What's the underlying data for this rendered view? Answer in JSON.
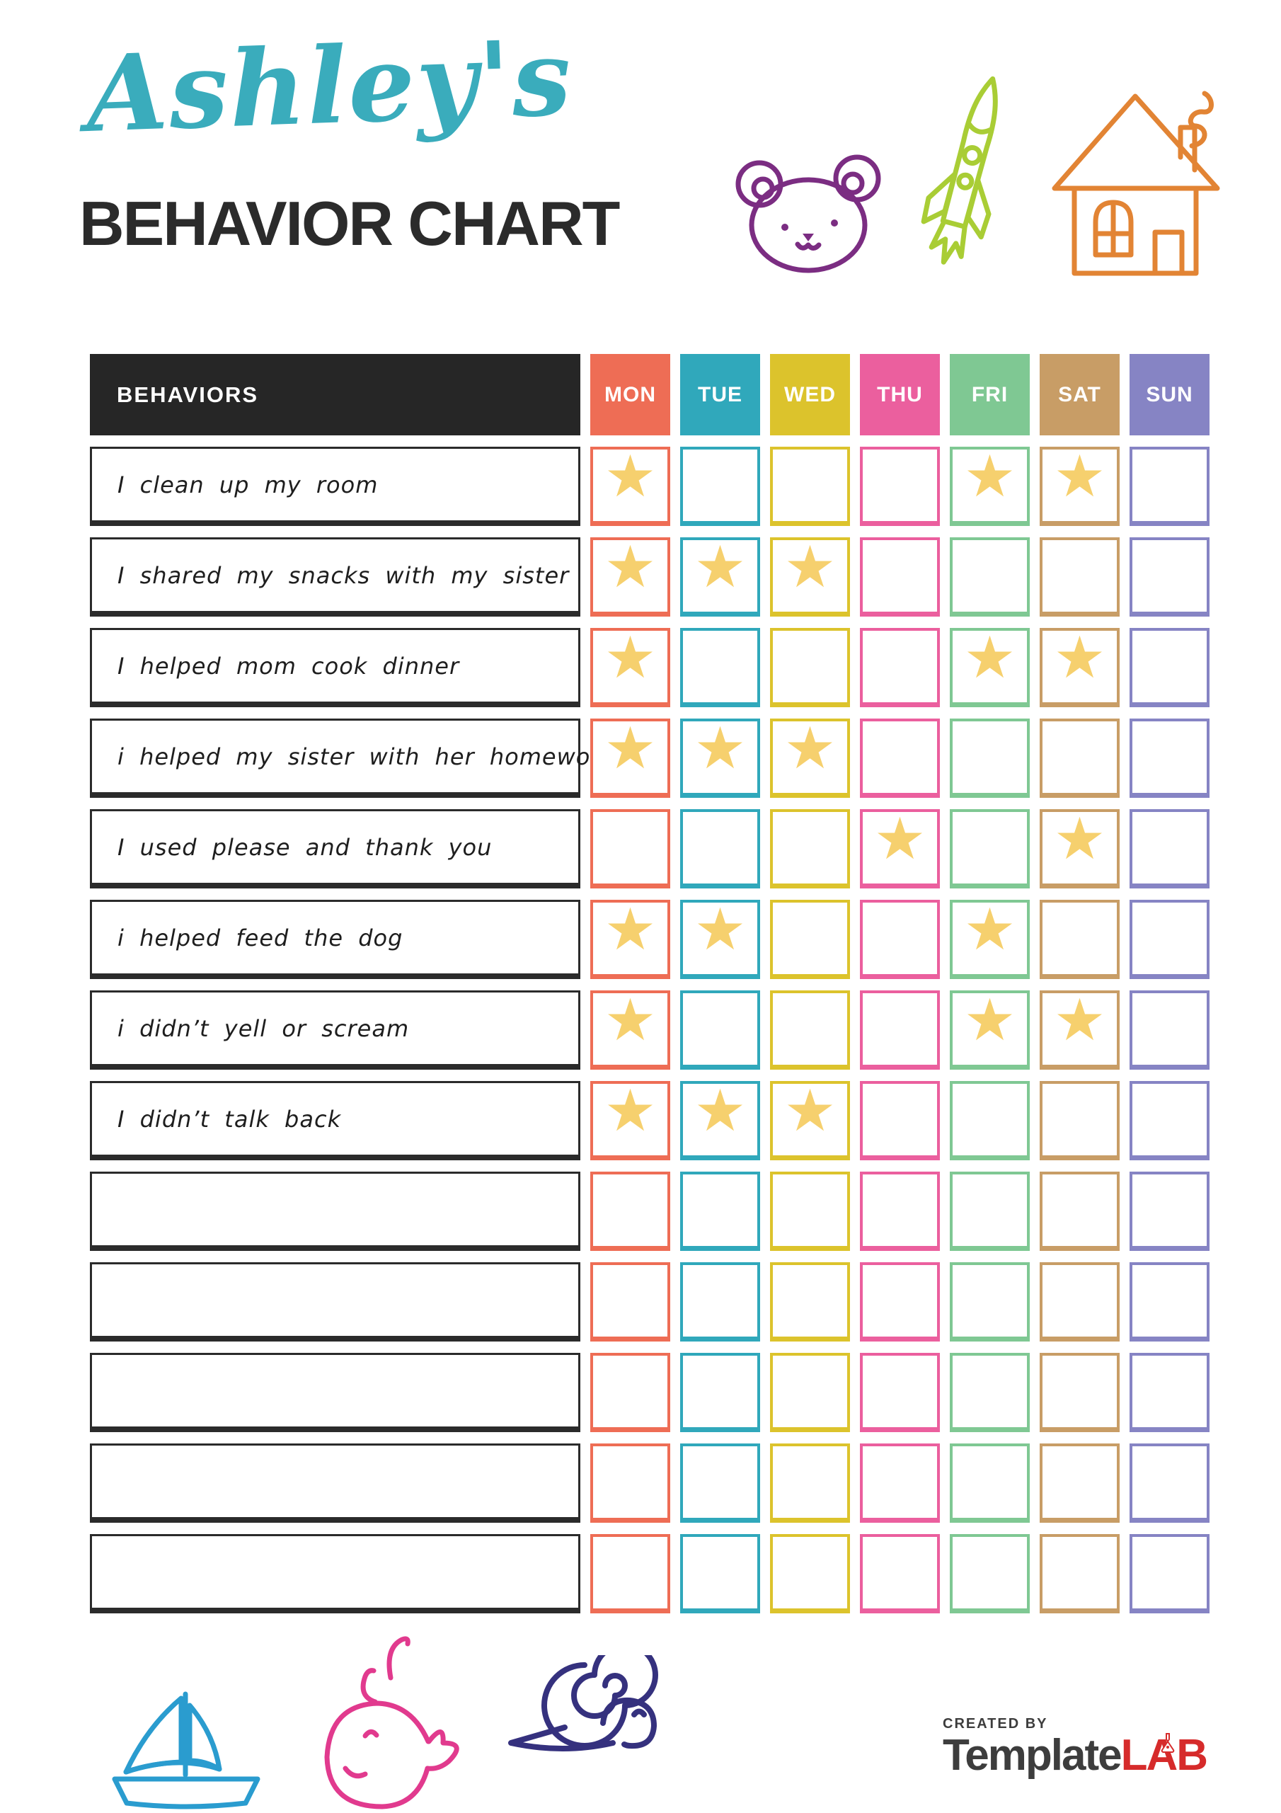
{
  "page": {
    "title_script": "Ashley's",
    "title_main": "BEHAVIOR CHART"
  },
  "colors": {
    "title_teal": "#3aacbc",
    "ink": "#2b2b2b",
    "header_black": "#262626",
    "star": "#f6d06e",
    "bear": "#7b2d82",
    "rocket": "#a9cd35",
    "house": "#e28434",
    "boat": "#2a9ccf",
    "whale": "#e13a8e",
    "snail": "#35317e",
    "logo_gray": "#3d3d3d",
    "logo_red": "#d62b2b"
  },
  "icons": {
    "top": [
      "bear-icon",
      "rocket-icon",
      "house-icon"
    ],
    "bottom": [
      "sailboat-icon",
      "whale-icon",
      "snail-icon"
    ],
    "star_glyph": "★"
  },
  "chart": {
    "behaviors_header": "BEHAVIORS",
    "days": [
      {
        "label": "MON",
        "color": "#ee6d55"
      },
      {
        "label": "TUE",
        "color": "#30a8bb"
      },
      {
        "label": "WED",
        "color": "#dcc32c"
      },
      {
        "label": "THU",
        "color": "#eb5f9e"
      },
      {
        "label": "FRI",
        "color": "#7fc893"
      },
      {
        "label": "SAT",
        "color": "#c89d66"
      },
      {
        "label": "SUN",
        "color": "#8684c4"
      }
    ],
    "rows": [
      {
        "label": "I clean up my room",
        "stars": [
          1,
          0,
          0,
          0,
          1,
          1,
          0
        ]
      },
      {
        "label": "I shared my snacks with my sister",
        "stars": [
          1,
          1,
          1,
          0,
          0,
          0,
          0
        ]
      },
      {
        "label": "I helped mom cook dinner",
        "stars": [
          1,
          0,
          0,
          0,
          1,
          1,
          0
        ]
      },
      {
        "label": "i helped my sister with her homework",
        "stars": [
          1,
          1,
          1,
          0,
          0,
          0,
          0
        ]
      },
      {
        "label": "I used please and thank you",
        "stars": [
          0,
          0,
          0,
          1,
          0,
          1,
          0
        ]
      },
      {
        "label": "i helped feed the dog",
        "stars": [
          1,
          1,
          0,
          0,
          1,
          0,
          0
        ]
      },
      {
        "label": "i didn’t yell or scream",
        "stars": [
          1,
          0,
          0,
          0,
          1,
          1,
          0
        ]
      },
      {
        "label": "I didn’t talk back",
        "stars": [
          1,
          1,
          1,
          0,
          0,
          0,
          0
        ]
      },
      {
        "label": "",
        "stars": [
          0,
          0,
          0,
          0,
          0,
          0,
          0
        ]
      },
      {
        "label": "",
        "stars": [
          0,
          0,
          0,
          0,
          0,
          0,
          0
        ]
      },
      {
        "label": "",
        "stars": [
          0,
          0,
          0,
          0,
          0,
          0,
          0
        ]
      },
      {
        "label": "",
        "stars": [
          0,
          0,
          0,
          0,
          0,
          0,
          0
        ]
      },
      {
        "label": "",
        "stars": [
          0,
          0,
          0,
          0,
          0,
          0,
          0
        ]
      }
    ]
  },
  "footer": {
    "created_by": "CREATED BY",
    "logo_part1": "Template",
    "logo_part2": "LAB"
  }
}
